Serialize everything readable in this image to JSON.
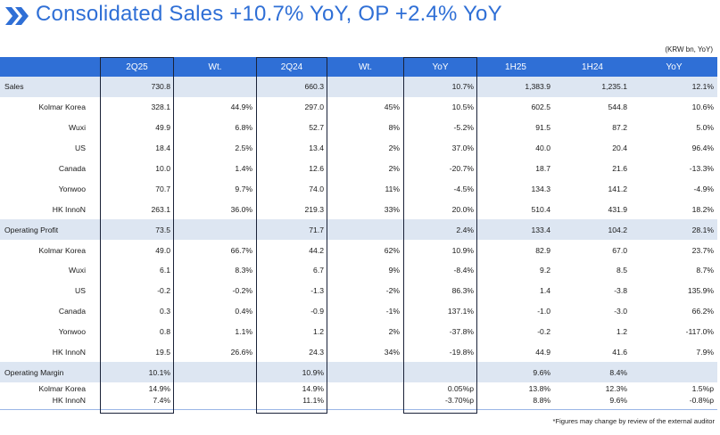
{
  "title": "Consolidated Sales +10.7% YoY, OP +2.4% YoY",
  "unit_note": "(KRW bn, YoY)",
  "footnote": "*Figures may change by review of the external auditor",
  "columns": [
    "",
    "2Q25",
    "Wt.",
    "2Q24",
    "Wt.",
    "YoY",
    "1H25",
    "1H24",
    "YoY"
  ],
  "rows": [
    {
      "section": true,
      "cells": [
        "Sales",
        "730.8",
        "",
        "660.3",
        "",
        "10.7%",
        "1,383.9",
        "1,235.1",
        "12.1%"
      ]
    },
    {
      "section": false,
      "cells": [
        "Kolmar Korea",
        "328.1",
        "44.9%",
        "297.0",
        "45%",
        "10.5%",
        "602.5",
        "544.8",
        "10.6%"
      ]
    },
    {
      "section": false,
      "cells": [
        "Wuxi",
        "49.9",
        "6.8%",
        "52.7",
        "8%",
        "-5.2%",
        "91.5",
        "87.2",
        "5.0%"
      ]
    },
    {
      "section": false,
      "cells": [
        "US",
        "18.4",
        "2.5%",
        "13.4",
        "2%",
        "37.0%",
        "40.0",
        "20.4",
        "96.4%"
      ]
    },
    {
      "section": false,
      "cells": [
        "Canada",
        "10.0",
        "1.4%",
        "12.6",
        "2%",
        "-20.7%",
        "18.7",
        "21.6",
        "-13.3%"
      ]
    },
    {
      "section": false,
      "cells": [
        "Yonwoo",
        "70.7",
        "9.7%",
        "74.0",
        "11%",
        "-4.5%",
        "134.3",
        "141.2",
        "-4.9%"
      ]
    },
    {
      "section": false,
      "cells": [
        "HK InnoN",
        "263.1",
        "36.0%",
        "219.3",
        "33%",
        "20.0%",
        "510.4",
        "431.9",
        "18.2%"
      ]
    },
    {
      "section": true,
      "cells": [
        "Operating Profit",
        "73.5",
        "",
        "71.7",
        "",
        "2.4%",
        "133.4",
        "104.2",
        "28.1%"
      ]
    },
    {
      "section": false,
      "cells": [
        "Kolmar Korea",
        "49.0",
        "66.7%",
        "44.2",
        "62%",
        "10.9%",
        "82.9",
        "67.0",
        "23.7%"
      ]
    },
    {
      "section": false,
      "cells": [
        "Wuxi",
        "6.1",
        "8.3%",
        "6.7",
        "9%",
        "-8.4%",
        "9.2",
        "8.5",
        "8.7%"
      ]
    },
    {
      "section": false,
      "cells": [
        "US",
        "-0.2",
        "-0.2%",
        "-1.3",
        "-2%",
        "86.3%",
        "1.4",
        "-3.8",
        "135.9%"
      ]
    },
    {
      "section": false,
      "cells": [
        "Canada",
        "0.3",
        "0.4%",
        "-0.9",
        "-1%",
        "137.1%",
        "-1.0",
        "-3.0",
        "66.2%"
      ]
    },
    {
      "section": false,
      "cells": [
        "Yonwoo",
        "0.8",
        "1.1%",
        "1.2",
        "2%",
        "-37.8%",
        "-0.2",
        "1.2",
        "-117.0%"
      ]
    },
    {
      "section": false,
      "cells": [
        "HK InnoN",
        "19.5",
        "26.6%",
        "24.3",
        "34%",
        "-19.8%",
        "44.9",
        "41.6",
        "7.9%"
      ]
    },
    {
      "section": true,
      "cells": [
        "Operating Margin",
        "10.1%",
        "",
        "10.9%",
        "",
        "",
        "9.6%",
        "8.4%",
        ""
      ]
    },
    {
      "section": false,
      "cells": [
        "Kolmar Korea",
        "14.9%",
        "",
        "14.9%",
        "",
        "0.05%p",
        "13.8%",
        "12.3%",
        "1.5%p"
      ]
    },
    {
      "section": false,
      "cells": [
        "HK InnoN",
        "7.4%",
        "",
        "11.1%",
        "",
        "-3.70%p",
        "8.8%",
        "9.6%",
        "-0.8%p"
      ]
    }
  ],
  "colors": {
    "accent": "#2f6fd6",
    "section_bg": "#dde6f2",
    "box_border": "#1a2238"
  }
}
